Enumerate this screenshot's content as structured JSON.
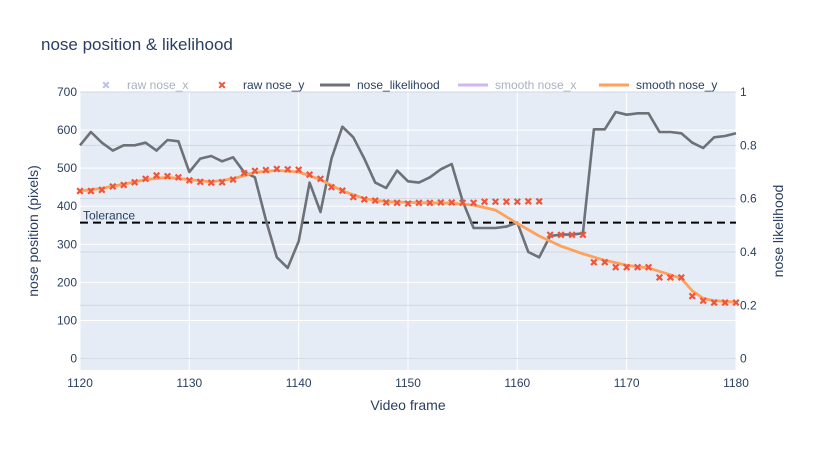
{
  "chart_data": {
    "type": "line",
    "title": "nose position & likelihood",
    "xlabel": "Video frame",
    "ylabel": "nose position (pixels)",
    "y2label": "nose likelihood",
    "xlim": [
      1120,
      1180
    ],
    "ylim": [
      -30,
      700
    ],
    "y2lim": [
      -0.0428,
      1.0
    ],
    "x_ticks": [
      1120,
      1130,
      1140,
      1150,
      1160,
      1170,
      1180
    ],
    "y_ticks": [
      0,
      100,
      200,
      300,
      400,
      500,
      600,
      700
    ],
    "y2_ticks": [
      0,
      0.2,
      0.4,
      0.6,
      0.8,
      1
    ],
    "grid": true,
    "legend_position": "top",
    "annotation": {
      "text": "Tolerance",
      "y2": 0.51
    },
    "legend": [
      {
        "name": "raw nose_x",
        "kind": "marker",
        "color": "#636efa",
        "visible": false
      },
      {
        "name": "raw nose_y",
        "kind": "marker",
        "color": "#ef553b",
        "visible": true
      },
      {
        "name": "nose_likelihood",
        "kind": "line",
        "color": "#6e7177",
        "visible": true
      },
      {
        "name": "smooth nose_x",
        "kind": "line",
        "color": "#ab63fa",
        "visible": false
      },
      {
        "name": "smooth nose_y",
        "kind": "line",
        "color": "#ffa15a",
        "visible": true
      }
    ],
    "series": [
      {
        "name": "raw nose_y",
        "axis": "y",
        "points": [
          [
            1120,
            440
          ],
          [
            1121,
            440
          ],
          [
            1122,
            443
          ],
          [
            1123,
            452
          ],
          [
            1124,
            456
          ],
          [
            1125,
            463
          ],
          [
            1126,
            472
          ],
          [
            1127,
            481
          ],
          [
            1128,
            479
          ],
          [
            1129,
            476
          ],
          [
            1130,
            468
          ],
          [
            1131,
            464
          ],
          [
            1132,
            462
          ],
          [
            1133,
            463
          ],
          [
            1134,
            470
          ],
          [
            1135,
            487
          ],
          [
            1136,
            493
          ],
          [
            1137,
            495
          ],
          [
            1138,
            498
          ],
          [
            1139,
            497
          ],
          [
            1140,
            496
          ],
          [
            1141,
            483
          ],
          [
            1142,
            472
          ],
          [
            1143,
            450
          ],
          [
            1144,
            441
          ],
          [
            1145,
            424
          ],
          [
            1146,
            418
          ],
          [
            1147,
            415
          ],
          [
            1148,
            410
          ],
          [
            1149,
            409
          ],
          [
            1150,
            407
          ],
          [
            1151,
            409
          ],
          [
            1152,
            409
          ],
          [
            1153,
            410
          ],
          [
            1154,
            410
          ],
          [
            1155,
            409
          ],
          [
            1156,
            409
          ],
          [
            1157,
            412
          ],
          [
            1158,
            412
          ],
          [
            1159,
            412
          ],
          [
            1160,
            412
          ],
          [
            1161,
            413
          ],
          [
            1162,
            413
          ],
          [
            1163,
            325
          ],
          [
            1164,
            325
          ],
          [
            1165,
            325
          ],
          [
            1166,
            325
          ],
          [
            1167,
            253
          ],
          [
            1168,
            253
          ],
          [
            1169,
            240
          ],
          [
            1170,
            240
          ],
          [
            1171,
            240
          ],
          [
            1172,
            240
          ],
          [
            1173,
            213
          ],
          [
            1174,
            213
          ],
          [
            1175,
            213
          ],
          [
            1176,
            164
          ],
          [
            1177,
            152
          ],
          [
            1178,
            147
          ],
          [
            1179,
            147
          ],
          [
            1180,
            147
          ]
        ]
      },
      {
        "name": "nose_likelihood",
        "axis": "y2",
        "points": [
          [
            1120,
            0.8
          ],
          [
            1121,
            0.85
          ],
          [
            1122,
            0.81
          ],
          [
            1123,
            0.78
          ],
          [
            1124,
            0.8
          ],
          [
            1125,
            0.8
          ],
          [
            1126,
            0.81
          ],
          [
            1127,
            0.78
          ],
          [
            1128,
            0.82
          ],
          [
            1129,
            0.815
          ],
          [
            1130,
            0.7
          ],
          [
            1131,
            0.75
          ],
          [
            1132,
            0.76
          ],
          [
            1133,
            0.74
          ],
          [
            1134,
            0.755
          ],
          [
            1135,
            0.7
          ],
          [
            1136,
            0.68
          ],
          [
            1137,
            0.52
          ],
          [
            1138,
            0.38
          ],
          [
            1139,
            0.34
          ],
          [
            1140,
            0.44
          ],
          [
            1141,
            0.66
          ],
          [
            1142,
            0.55
          ],
          [
            1143,
            0.75
          ],
          [
            1144,
            0.87
          ],
          [
            1145,
            0.83
          ],
          [
            1146,
            0.75
          ],
          [
            1147,
            0.66
          ],
          [
            1148,
            0.64
          ],
          [
            1149,
            0.705
          ],
          [
            1150,
            0.665
          ],
          [
            1151,
            0.66
          ],
          [
            1152,
            0.68
          ],
          [
            1153,
            0.71
          ],
          [
            1154,
            0.73
          ],
          [
            1155,
            0.59
          ],
          [
            1156,
            0.49
          ],
          [
            1157,
            0.49
          ],
          [
            1158,
            0.49
          ],
          [
            1159,
            0.495
          ],
          [
            1160,
            0.51
          ],
          [
            1161,
            0.4
          ],
          [
            1162,
            0.38
          ],
          [
            1163,
            0.46
          ],
          [
            1164,
            0.465
          ],
          [
            1165,
            0.465
          ],
          [
            1166,
            0.47
          ],
          [
            1167,
            0.86
          ],
          [
            1168,
            0.86
          ],
          [
            1169,
            0.925
          ],
          [
            1170,
            0.915
          ],
          [
            1171,
            0.92
          ],
          [
            1172,
            0.92
          ],
          [
            1173,
            0.85
          ],
          [
            1174,
            0.85
          ],
          [
            1175,
            0.845
          ],
          [
            1176,
            0.81
          ],
          [
            1177,
            0.79
          ],
          [
            1178,
            0.83
          ],
          [
            1179,
            0.835
          ],
          [
            1180,
            0.845
          ]
        ]
      },
      {
        "name": "smooth nose_y",
        "axis": "y",
        "points": [
          [
            1120,
            440
          ],
          [
            1122,
            447
          ],
          [
            1124,
            458
          ],
          [
            1126,
            470
          ],
          [
            1128,
            476
          ],
          [
            1130,
            470
          ],
          [
            1132,
            464
          ],
          [
            1134,
            472
          ],
          [
            1136,
            489
          ],
          [
            1138,
            494
          ],
          [
            1140,
            490
          ],
          [
            1142,
            470
          ],
          [
            1144,
            440
          ],
          [
            1146,
            420
          ],
          [
            1148,
            412
          ],
          [
            1150,
            410
          ],
          [
            1152,
            409
          ],
          [
            1154,
            408
          ],
          [
            1156,
            403
          ],
          [
            1158,
            390
          ],
          [
            1160,
            355
          ],
          [
            1162,
            322
          ],
          [
            1164,
            295
          ],
          [
            1166,
            275
          ],
          [
            1168,
            258
          ],
          [
            1170,
            245
          ],
          [
            1172,
            238
          ],
          [
            1174,
            220
          ],
          [
            1175,
            210
          ],
          [
            1176,
            178
          ],
          [
            1177,
            158
          ],
          [
            1178,
            152
          ],
          [
            1180,
            148
          ]
        ]
      }
    ]
  }
}
